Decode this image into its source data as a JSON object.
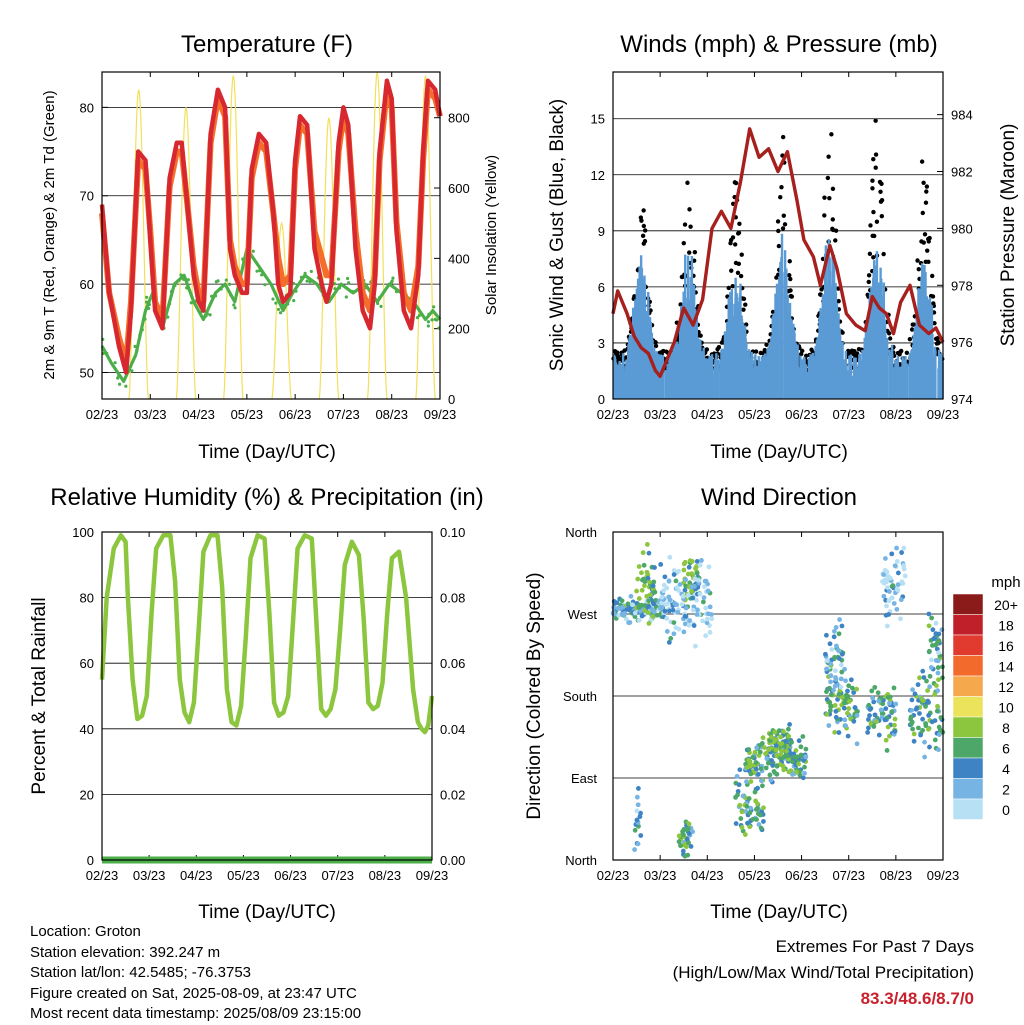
{
  "x_ticks": [
    "02/23",
    "03/23",
    "04/23",
    "05/23",
    "06/23",
    "07/23",
    "08/23",
    "09/23"
  ],
  "colors": {
    "t2m": "#d7282f",
    "t9m": "#f46d2b",
    "td": "#4cae49",
    "solar": "#f3e05a",
    "gust": "#000000",
    "wind": "#5b9bd5",
    "pressure": "#a6201e",
    "rh": "#8cc63f",
    "precip": "#4cae49"
  },
  "chart_data": [
    {
      "type": "line",
      "title": "Temperature (F)",
      "xlabel": "Time (Day/UTC)",
      "ylabel": "2m & 9m T (Red, Orange) & 2m Td (Green)",
      "ylabel_right": "Solar Insolation (Yellow)",
      "ylim": [
        47,
        84
      ],
      "yticks": [
        50,
        60,
        70,
        80
      ],
      "ylim_right": [
        0,
        930
      ],
      "yticks_right": [
        0,
        200,
        400,
        600,
        800
      ],
      "series": [
        {
          "key": "t2m",
          "color_key": "t2m",
          "x": [
            0,
            0.15,
            0.35,
            0.5,
            0.6,
            0.75,
            0.9,
            1.0,
            1.1,
            1.25,
            1.4,
            1.55,
            1.65,
            1.75,
            1.9,
            2.0,
            2.1,
            2.25,
            2.4,
            2.55,
            2.65,
            2.75,
            2.9,
            3.0,
            3.1,
            3.25,
            3.4,
            3.55,
            3.65,
            3.75,
            3.9,
            4.0,
            4.1,
            4.25,
            4.4,
            4.55,
            4.65,
            4.75,
            4.9,
            5.0,
            5.1,
            5.25,
            5.4,
            5.55,
            5.65,
            5.75,
            5.9,
            6.0,
            6.1,
            6.25,
            6.4,
            6.55,
            6.65,
            6.75,
            6.9,
            7.0
          ],
          "y": [
            69,
            59,
            53,
            50,
            57,
            75,
            74,
            65,
            57,
            55,
            72,
            76,
            76,
            70,
            61,
            58,
            57,
            77,
            82,
            80,
            64,
            61,
            59,
            59,
            73,
            77,
            76,
            68,
            60,
            58,
            59,
            74,
            79,
            78,
            64,
            60,
            58,
            60,
            76,
            80,
            78,
            64,
            57,
            55,
            60,
            75,
            83,
            81,
            66,
            57,
            55,
            61,
            75,
            83,
            82,
            79
          ]
        },
        {
          "key": "t9m",
          "color_key": "t9m",
          "x": [
            0,
            0.15,
            0.35,
            0.5,
            0.6,
            0.75,
            0.9,
            1.0,
            1.1,
            1.25,
            1.4,
            1.55,
            1.65,
            1.75,
            1.9,
            2.0,
            2.1,
            2.25,
            2.4,
            2.55,
            2.65,
            2.75,
            2.9,
            3.0,
            3.1,
            3.25,
            3.4,
            3.55,
            3.65,
            3.75,
            3.9,
            4.0,
            4.1,
            4.25,
            4.4,
            4.55,
            4.65,
            4.75,
            4.9,
            5.0,
            5.1,
            5.25,
            5.4,
            5.55,
            5.65,
            5.75,
            5.9,
            6.0,
            6.1,
            6.25,
            6.4,
            6.55,
            6.65,
            6.75,
            6.9,
            7.0
          ],
          "y": [
            68,
            59,
            54,
            51,
            58,
            74,
            73,
            66,
            58,
            56,
            71,
            75,
            75,
            70,
            62,
            59,
            58,
            76,
            81,
            79,
            65,
            62,
            60,
            60,
            72,
            76,
            75,
            68,
            63,
            60,
            61,
            73,
            78,
            77,
            66,
            63,
            61,
            61,
            75,
            79,
            77,
            66,
            59,
            57,
            61,
            74,
            82,
            80,
            67,
            59,
            57,
            62,
            74,
            82,
            81,
            79
          ]
        },
        {
          "key": "td",
          "color_key": "td",
          "x": [
            0,
            0.2,
            0.45,
            0.7,
            0.9,
            1.05,
            1.25,
            1.5,
            1.7,
            1.9,
            2.1,
            2.35,
            2.55,
            2.75,
            3.0,
            3.25,
            3.5,
            3.75,
            3.95,
            4.2,
            4.45,
            4.7,
            4.95,
            5.2,
            5.45,
            5.7,
            5.95,
            6.2,
            6.45,
            6.7,
            6.85,
            7.0
          ],
          "y": [
            53,
            51,
            49,
            52,
            57,
            59,
            55,
            60,
            61,
            58,
            56,
            59,
            60,
            58,
            64,
            62,
            60,
            57,
            59,
            61,
            60,
            58,
            60,
            59,
            60,
            58,
            60,
            59,
            58,
            56,
            57,
            56
          ]
        },
        {
          "key": "solar",
          "color_key": "solar",
          "axis": "right",
          "peaks": [
            {
              "day": 0,
              "x": 0.76,
              "max": 880
            },
            {
              "day": 1,
              "x": 1.74,
              "max": 830
            },
            {
              "day": 2,
              "x": 2.72,
              "max": 920
            },
            {
              "day": 3,
              "x": 3.72,
              "max": 500
            },
            {
              "day": 4,
              "x": 4.7,
              "max": 800
            },
            {
              "day": 5,
              "x": 5.7,
              "max": 930
            },
            {
              "day": 6,
              "x": 6.7,
              "max": 920
            }
          ]
        }
      ]
    },
    {
      "type": "line",
      "title": "Winds (mph) & Pressure (mb)",
      "xlabel": "Time (Day/UTC)",
      "ylabel": "Sonic Wind & Gust (Blue, Black)",
      "ylabel_right": "Station Pressure (Maroon)",
      "ylim": [
        0,
        17.5
      ],
      "yticks": [
        0,
        3,
        6,
        9,
        12,
        15
      ],
      "ylim_right": [
        974,
        985.5
      ],
      "yticks_right": [
        974,
        976,
        978,
        980,
        982,
        984
      ],
      "series": [
        {
          "key": "pressure",
          "color_key": "pressure",
          "axis": "right",
          "x": [
            0,
            0.1,
            0.3,
            0.45,
            0.6,
            0.75,
            0.9,
            1.0,
            1.1,
            1.3,
            1.5,
            1.7,
            1.9,
            2.1,
            2.3,
            2.5,
            2.7,
            2.9,
            3.1,
            3.3,
            3.5,
            3.7,
            3.9,
            4.05,
            4.25,
            4.4,
            4.6,
            4.75,
            4.95,
            5.15,
            5.35,
            5.5,
            5.65,
            5.8,
            5.95,
            6.1,
            6.3,
            6.5,
            6.7,
            6.85,
            7.0
          ],
          "y": [
            977,
            977.8,
            977,
            976.2,
            975.8,
            975.6,
            975,
            974.8,
            975.2,
            976,
            977.2,
            976.6,
            977.5,
            980,
            980.6,
            980,
            981.6,
            983.5,
            982.5,
            982.8,
            982,
            982.7,
            981,
            979.6,
            979,
            978,
            979.4,
            978.6,
            977,
            976.6,
            976.4,
            977.6,
            977.2,
            977,
            976.3,
            977.4,
            978,
            976.6,
            976.3,
            976.5,
            976
          ]
        },
        {
          "key": "gust",
          "color_key": "gust",
          "style": "dots",
          "daily_peaks": [
            11.5,
            13,
            12,
            14.5,
            14.5,
            15.5,
            13.3
          ]
        },
        {
          "key": "wind",
          "color_key": "wind",
          "style": "band",
          "daily_peaks": [
            7.0,
            7.5,
            6.5,
            8.0,
            8.5,
            8.0,
            7.0
          ]
        }
      ]
    },
    {
      "type": "line",
      "title": "Relative Humidity (%) & Precipitation (in)",
      "xlabel": "Time (Day/UTC)",
      "ylabel": "Percent & Total Rainfall",
      "ylim": [
        0,
        100
      ],
      "yticks": [
        0,
        20,
        40,
        60,
        80,
        100
      ],
      "ylim_right": [
        0,
        0.1
      ],
      "yticks_right": [
        "0.00",
        "0.02",
        "0.04",
        "0.06",
        "0.08",
        "0.10"
      ],
      "series": [
        {
          "key": "rh",
          "color_key": "rh",
          "x": [
            0,
            0.1,
            0.25,
            0.4,
            0.5,
            0.55,
            0.65,
            0.75,
            0.85,
            0.95,
            1.05,
            1.15,
            1.3,
            1.45,
            1.55,
            1.65,
            1.75,
            1.85,
            1.95,
            2.05,
            2.15,
            2.3,
            2.45,
            2.55,
            2.65,
            2.75,
            2.85,
            2.95,
            3.05,
            3.15,
            3.3,
            3.45,
            3.55,
            3.65,
            3.75,
            3.85,
            3.95,
            4.05,
            4.15,
            4.3,
            4.45,
            4.55,
            4.65,
            4.75,
            4.85,
            4.95,
            5.05,
            5.15,
            5.3,
            5.45,
            5.55,
            5.65,
            5.75,
            5.85,
            5.95,
            6.05,
            6.15,
            6.3,
            6.45,
            6.6,
            6.7,
            6.78,
            6.85,
            6.92,
            7.0
          ],
          "y": [
            55,
            80,
            95,
            99,
            97,
            80,
            55,
            43,
            44,
            50,
            75,
            95,
            99,
            99,
            85,
            55,
            45,
            42,
            48,
            70,
            94,
            99,
            99,
            83,
            52,
            42,
            41,
            47,
            68,
            92,
            99,
            98,
            75,
            48,
            44,
            45,
            50,
            72,
            95,
            99,
            98,
            72,
            46,
            44,
            46,
            52,
            70,
            90,
            97,
            93,
            74,
            48,
            46,
            47,
            54,
            75,
            92,
            94,
            80,
            52,
            42,
            40,
            39,
            41,
            50
          ]
        },
        {
          "key": "precip",
          "color_key": "precip",
          "axis": "right",
          "x": [
            0,
            7
          ],
          "y": [
            0,
            0
          ]
        }
      ]
    },
    {
      "type": "scatter",
      "title": "Wind Direction",
      "xlabel": "Time (Day/UTC)",
      "ylabel": "Direction (Colored By Speed)",
      "ylim": [
        0,
        360
      ],
      "yticks": [
        "North",
        "East",
        "South",
        "West",
        "North"
      ],
      "legend": {
        "title": "mph",
        "labels": [
          "20+",
          "18",
          "16",
          "14",
          "12",
          "10",
          "8",
          "6",
          "4",
          "2",
          "0"
        ],
        "colors": [
          "#8b1a1a",
          "#c0202a",
          "#e03b2e",
          "#f26b2c",
          "#f6a84d",
          "#ece35c",
          "#8cc63f",
          "#4ca768",
          "#3e84c4",
          "#76b4e3",
          "#b8e0f5"
        ]
      },
      "clusters": [
        {
          "x0": 0.0,
          "x1": 1.1,
          "dir": 275,
          "spread": 12,
          "level": 9
        },
        {
          "x0": 0.5,
          "x1": 0.9,
          "dir": 300,
          "spread": 35,
          "level": 7
        },
        {
          "x0": 1.5,
          "x1": 1.85,
          "dir": 310,
          "spread": 30,
          "level": 7
        },
        {
          "x0": 1.0,
          "x1": 2.1,
          "dir": 280,
          "spread": 40,
          "level": 10
        },
        {
          "x0": 0.45,
          "x1": 0.6,
          "dir": 40,
          "spread": 35,
          "level": 9
        },
        {
          "x0": 1.4,
          "x1": 1.7,
          "dir": 20,
          "spread": 20,
          "level": 8
        },
        {
          "x0": 2.8,
          "x1": 4.1,
          "dir": 110,
          "spread": 22,
          "level": 8
        },
        {
          "x0": 3.3,
          "x1": 3.8,
          "dir": 130,
          "spread": 15,
          "level": 7
        },
        {
          "x0": 2.6,
          "x1": 3.2,
          "dir": 60,
          "spread": 40,
          "level": 8
        },
        {
          "x0": 4.5,
          "x1": 5.2,
          "dir": 170,
          "spread": 35,
          "level": 8
        },
        {
          "x0": 4.5,
          "x1": 4.9,
          "dir": 220,
          "spread": 40,
          "level": 9
        },
        {
          "x0": 5.4,
          "x1": 6.0,
          "dir": 160,
          "spread": 30,
          "level": 8
        },
        {
          "x0": 5.7,
          "x1": 6.2,
          "dir": 300,
          "spread": 45,
          "level": 10
        },
        {
          "x0": 6.3,
          "x1": 7.0,
          "dir": 160,
          "spread": 40,
          "level": 8
        },
        {
          "x0": 6.7,
          "x1": 7.0,
          "dir": 230,
          "spread": 40,
          "level": 9
        }
      ]
    }
  ],
  "info": {
    "location": "Location: Groton",
    "elevation": "Station elevation: 392.247 m",
    "latlon": "Station lat/lon: 42.5485; -76.3753",
    "created": "Figure created on Sat, 2025-08-09, at 23:47 UTC",
    "recent": "Most recent data timestamp: 2025/08/09 23:15:00"
  },
  "extremes": {
    "heading": "Extremes For Past 7 Days",
    "subheading": "(High/Low/Max Wind/Total Precipitation)",
    "values": "83.3/48.6/8.7/0"
  }
}
